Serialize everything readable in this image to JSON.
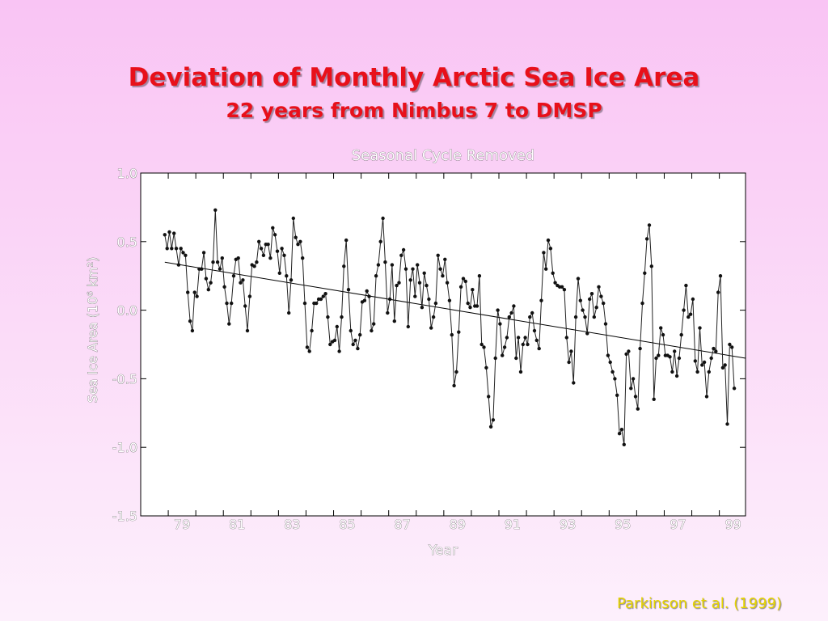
{
  "slide": {
    "title": "Deviation of Monthly Arctic Sea Ice Area",
    "subtitle": "22 years from Nimbus 7 to DMSP",
    "citation": "Parkinson et al. (1999)"
  },
  "chart_data": {
    "type": "line",
    "title": "Seasonal Cycle Removed",
    "xlabel": "Year",
    "ylabel": "Sea Ice Area (10⁶ km²)",
    "xlim": [
      1978.0,
      1999.95
    ],
    "ylim": [
      -1.5,
      1.0
    ],
    "yticks": [
      1.0,
      0.5,
      0.0,
      -0.5,
      -1.0,
      -1.5
    ],
    "ytick_labels": [
      "1.0",
      "0.5",
      "0.0",
      "-0.5",
      "-1.0",
      "-1.5"
    ],
    "xtick_years": [
      1979,
      1981,
      1983,
      1985,
      1987,
      1989,
      1991,
      1993,
      1995,
      1997,
      1999
    ],
    "xtick_labels": [
      "79",
      "81",
      "83",
      "85",
      "87",
      "89",
      "91",
      "93",
      "95",
      "97",
      "99"
    ],
    "grid": false,
    "series": [
      {
        "x_start": 1978.875,
        "x_step": 0.08333,
        "values": [
          0.55,
          0.45,
          0.57,
          0.45,
          0.56,
          0.45,
          0.33,
          0.45,
          0.42,
          0.4,
          0.13,
          -0.08,
          -0.15,
          0.13,
          0.1,
          0.3,
          0.3,
          0.42,
          0.23,
          0.15,
          0.2,
          0.35,
          0.73,
          0.35,
          0.3,
          0.38,
          0.17,
          0.05,
          -0.1,
          0.05,
          0.25,
          0.37,
          0.38,
          0.2,
          0.22,
          0.03,
          -0.15,
          0.1,
          0.33,
          0.32,
          0.35,
          0.5,
          0.45,
          0.4,
          0.48,
          0.48,
          0.38,
          0.6,
          0.55,
          0.43,
          0.27,
          0.45,
          0.4,
          0.25,
          -0.02,
          0.22,
          0.67,
          0.53,
          0.48,
          0.5,
          0.38,
          0.05,
          -0.27,
          -0.3,
          -0.15,
          0.05,
          0.05,
          0.08,
          0.08,
          0.1,
          0.12,
          -0.05,
          -0.25,
          -0.23,
          -0.22,
          -0.12,
          -0.3,
          -0.05,
          0.32,
          0.51,
          0.15,
          -0.15,
          -0.25,
          -0.22,
          -0.28,
          -0.18,
          0.06,
          0.07,
          0.14,
          0.1,
          -0.15,
          -0.1,
          0.25,
          0.33,
          0.5,
          0.67,
          0.35,
          -0.02,
          0.08,
          0.33,
          -0.08,
          0.18,
          0.2,
          0.4,
          0.44,
          0.3,
          -0.12,
          0.22,
          0.3,
          0.1,
          0.33,
          0.2,
          0.02,
          0.27,
          0.18,
          0.08,
          -0.13,
          -0.05,
          0.05,
          0.4,
          0.3,
          0.25,
          0.37,
          0.2,
          0.07,
          -0.18,
          -0.55,
          -0.45,
          -0.16,
          0.17,
          0.23,
          0.21,
          0.05,
          0.02,
          0.15,
          0.03,
          0.03,
          0.25,
          -0.25,
          -0.27,
          -0.42,
          -0.63,
          -0.85,
          -0.8,
          -0.35,
          0.0,
          -0.1,
          -0.33,
          -0.27,
          -0.2,
          -0.05,
          -0.02,
          0.03,
          -0.35,
          -0.2,
          -0.45,
          -0.25,
          -0.2,
          -0.25,
          -0.05,
          -0.02,
          -0.15,
          -0.22,
          -0.28,
          0.07,
          0.42,
          0.3,
          0.51,
          0.45,
          0.27,
          0.2,
          0.18,
          0.17,
          0.17,
          0.15,
          -0.2,
          -0.38,
          -0.3,
          -0.53,
          -0.05,
          0.23,
          0.07,
          0.0,
          -0.05,
          -0.17,
          0.08,
          0.12,
          -0.05,
          0.02,
          0.17,
          0.1,
          0.05,
          -0.1,
          -0.33,
          -0.38,
          -0.45,
          -0.5,
          -0.62,
          -0.9,
          -0.87,
          -0.98,
          -0.32,
          -0.3,
          -0.57,
          -0.5,
          -0.63,
          -0.72,
          -0.28,
          0.05,
          0.27,
          0.52,
          0.62,
          0.32,
          -0.65,
          -0.35,
          -0.33,
          -0.13,
          -0.18,
          -0.33,
          -0.33,
          -0.34,
          -0.45,
          -0.3,
          -0.48,
          -0.35,
          -0.18,
          0.0,
          0.18,
          -0.05,
          -0.03,
          0.08,
          -0.37,
          -0.45,
          -0.13,
          -0.4,
          -0.38,
          -0.63,
          -0.45,
          -0.35,
          -0.28,
          -0.3,
          0.13,
          0.25,
          -0.42,
          -0.4,
          -0.83,
          -0.25,
          -0.27,
          -0.57
        ]
      },
      {
        "type": "trend",
        "x": [
          1978.875,
          1999.95
        ],
        "values": [
          0.35,
          -0.35
        ]
      }
    ]
  }
}
